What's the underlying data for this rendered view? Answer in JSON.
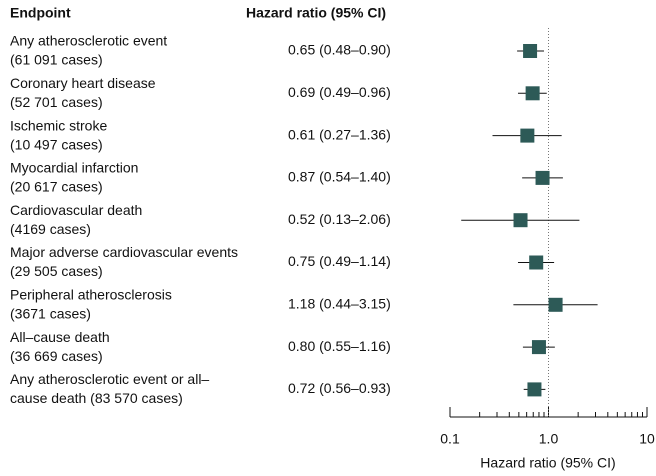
{
  "chart_data": {
    "type": "forest",
    "header_label": "Endpoint",
    "header_value": "Hazard ratio (95% CI)",
    "xlabel": "Hazard ratio (95% CI)",
    "categories": [
      [
        "Any atherosclerotic event",
        "(61 091 cases)"
      ],
      [
        "Coronary heart disease",
        "(52 701 cases)"
      ],
      [
        "Ischemic stroke",
        "(10 497 cases)"
      ],
      [
        "Myocardial infarction",
        "(20 617 cases)"
      ],
      [
        "Cardiovascular death",
        "(4169 cases)"
      ],
      [
        "Major adverse cardiovascular events",
        "(29 505 cases)"
      ],
      [
        "Peripheral atherosclerosis",
        "(3671 cases)"
      ],
      [
        "All–cause death",
        "(36 669 cases)"
      ],
      [
        "Any atherosclerotic event or all–",
        "cause death (83 570 cases)"
      ]
    ],
    "values": [
      0.65,
      0.69,
      0.61,
      0.87,
      0.52,
      0.75,
      1.18,
      0.8,
      0.72
    ],
    "lower": [
      0.48,
      0.49,
      0.27,
      0.54,
      0.13,
      0.49,
      0.44,
      0.55,
      0.56
    ],
    "upper": [
      0.9,
      0.96,
      1.36,
      1.4,
      2.06,
      1.14,
      3.15,
      1.16,
      0.93
    ],
    "value_labels": [
      "0.65 (0.48–0.90)",
      "0.69 (0.49–0.96)",
      "0.61 (0.27–1.36)",
      "0.87 (0.54–1.40)",
      "0.52 (0.13–2.06)",
      "0.75 (0.49–1.14)",
      "1.18 (0.44–3.15)",
      "0.80 (0.55–1.16)",
      "0.72 (0.56–0.93)"
    ],
    "color": "#2d5a57",
    "xscale": "log",
    "xlim": [
      0.1,
      10
    ],
    "xticks": [
      0.1,
      {
        "value": 1,
        "label": "1.0"
      },
      10
    ],
    "xminorticks": [
      0.2,
      0.3,
      0.4,
      0.5,
      0.6,
      0.7,
      0.8,
      0.9,
      2,
      3,
      4,
      5,
      6,
      7,
      8,
      9
    ],
    "reference_line": 1
  }
}
